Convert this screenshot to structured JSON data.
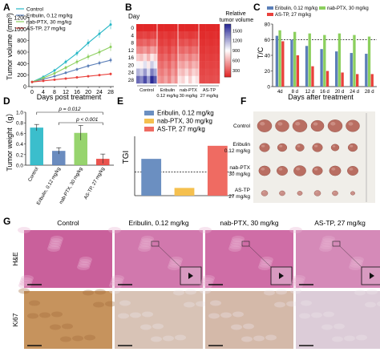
{
  "panels": {
    "A": {
      "letter": "A"
    },
    "B": {
      "letter": "B"
    },
    "C": {
      "letter": "C"
    },
    "D": {
      "letter": "D"
    },
    "E": {
      "letter": "E"
    },
    "F": {
      "letter": "F"
    },
    "G": {
      "letter": "G"
    }
  },
  "colors": {
    "control": "#26b7c6",
    "eribulin": "#5b7fb8",
    "nab": "#8ccf5e",
    "astp": "#e9413c",
    "tgi_eribulin": "#6b8fc1",
    "tgi_nab": "#f5c04f",
    "tgi_astp": "#ef6b62"
  },
  "chart_data": [
    {
      "id": "A",
      "type": "line",
      "xlabel": "Days post treatment",
      "ylabel": "Tumor volume (mm³)",
      "x": [
        0,
        4,
        8,
        12,
        16,
        20,
        24,
        28
      ],
      "xticks": [
        "0",
        "4",
        "8",
        "12",
        "16",
        "20",
        "24",
        "28"
      ],
      "yticks": [
        "0",
        "200",
        "400",
        "600",
        "800",
        "1000",
        "1200"
      ],
      "ylim": [
        0,
        1200
      ],
      "series": [
        {
          "name": "Control",
          "values": [
            80,
            170,
            280,
            430,
            580,
            760,
            920,
            1080
          ],
          "err": [
            10,
            20,
            30,
            40,
            50,
            60,
            70,
            80
          ]
        },
        {
          "name": "Eribulin, 0.12 mg/kg",
          "values": [
            80,
            130,
            180,
            240,
            300,
            360,
            410,
            460
          ],
          "err": [
            8,
            15,
            20,
            25,
            30,
            35,
            40,
            45
          ]
        },
        {
          "name": "nab-PTX, 30 mg/kg",
          "values": [
            80,
            150,
            230,
            330,
            430,
            520,
            600,
            690
          ],
          "err": [
            8,
            15,
            25,
            35,
            45,
            50,
            60,
            70
          ]
        },
        {
          "name": "AS-TP, 27 mg/kg",
          "values": [
            80,
            100,
            120,
            140,
            160,
            180,
            200,
            220
          ],
          "err": [
            6,
            10,
            12,
            15,
            18,
            20,
            22,
            25
          ]
        }
      ]
    },
    {
      "id": "B",
      "type": "heatmap",
      "title": "Day",
      "colorbar_title": "Relative tumor volume",
      "colorbar_ticks": [
        "300",
        "600",
        "900",
        "1200",
        "1500"
      ],
      "rows": [
        "0",
        "4",
        "8",
        "12",
        "16",
        "20",
        "24",
        "28"
      ],
      "groups": [
        "Control",
        "Eribulin\n0.12 mg/kg",
        "nab-PTX\n30 mg/kg",
        "AS-TP\n27 mg/kg"
      ],
      "cols_per_group": 6,
      "values": [
        [
          100,
          100,
          100,
          100,
          100,
          100,
          100,
          100,
          100,
          100,
          100,
          100,
          100,
          100,
          100,
          100,
          100,
          100,
          100,
          100,
          100,
          100,
          100,
          100
        ],
        [
          200,
          190,
          210,
          180,
          220,
          205,
          160,
          150,
          170,
          140,
          160,
          155,
          180,
          170,
          190,
          160,
          175,
          185,
          120,
          110,
          130,
          115,
          125,
          120
        ],
        [
          320,
          300,
          340,
          290,
          360,
          330,
          200,
          180,
          210,
          170,
          220,
          190,
          260,
          240,
          280,
          230,
          270,
          250,
          140,
          130,
          150,
          135,
          145,
          140
        ],
        [
          480,
          450,
          520,
          430,
          560,
          500,
          260,
          230,
          280,
          210,
          300,
          250,
          360,
          330,
          390,
          320,
          380,
          350,
          160,
          150,
          170,
          155,
          165,
          160
        ],
        [
          700,
          650,
          760,
          620,
          820,
          730,
          320,
          290,
          350,
          270,
          380,
          310,
          470,
          430,
          510,
          420,
          500,
          460,
          180,
          170,
          190,
          175,
          185,
          180
        ],
        [
          930,
          860,
          1010,
          820,
          1090,
          970,
          390,
          350,
          420,
          330,
          460,
          370,
          580,
          540,
          630,
          520,
          620,
          570,
          200,
          190,
          210,
          195,
          205,
          200
        ],
        [
          1180,
          1090,
          1280,
          1040,
          1380,
          1230,
          450,
          410,
          490,
          390,
          530,
          430,
          690,
          640,
          750,
          620,
          740,
          680,
          220,
          210,
          230,
          215,
          225,
          220
        ],
        [
          1450,
          1340,
          1570,
          1280,
          1690,
          1510,
          520,
          470,
          560,
          450,
          610,
          500,
          800,
          740,
          870,
          720,
          860,
          790,
          240,
          230,
          250,
          235,
          245,
          240
        ]
      ]
    },
    {
      "id": "C",
      "type": "bar",
      "ylabel": "T/C",
      "xlabel": "Days after treatment",
      "categories": [
        "4d",
        "8 d",
        "12 d",
        "16 d",
        "20 d",
        "24 d",
        "28 d"
      ],
      "yticks": [
        "0",
        "20",
        "40",
        "60",
        "80"
      ],
      "ylim": [
        0,
        80
      ],
      "threshold": 60,
      "series": [
        {
          "name": "Eribulin, 0.12 mg/kg",
          "values": [
            65,
            60,
            52,
            48,
            45,
            43,
            42
          ]
        },
        {
          "name": "nab-PTX, 30 mg/kg",
          "values": [
            72,
            70,
            68,
            66,
            68,
            66,
            64
          ]
        },
        {
          "name": "AS-TP, 27 mg/kg",
          "values": [
            58,
            40,
            26,
            20,
            18,
            16,
            16
          ]
        }
      ]
    },
    {
      "id": "D",
      "type": "bar",
      "ylabel": "Tumor weight（g）",
      "categories": [
        "Control",
        "Eribulin, 0.12 mg/kg",
        "nab-PTX, 30 mg/kg",
        "AS-TP, 27 mg/kg"
      ],
      "values": [
        0.71,
        0.27,
        0.61,
        0.12
      ],
      "err": [
        0.06,
        0.06,
        0.14,
        0.09
      ],
      "yticks": [
        "0.0",
        "0.2",
        "0.4",
        "0.6",
        "0.8",
        "1.0"
      ],
      "ylim": [
        0,
        1.0
      ],
      "annotations": [
        "p = 0.012",
        "p < 0.001"
      ]
    },
    {
      "id": "E",
      "type": "bar",
      "ylabel": "TGI",
      "categories": [
        "Eribulin, 0.12 mg/kg",
        "nab-PTX, 30 mg/kg",
        "AS-TP, 27 mg/kg"
      ],
      "values": [
        62,
        13,
        84
      ],
      "legend": [
        "Eribulin, 0.12 mg/kg",
        "nab-PTX, 30 mg/kg",
        "AS-TP, 27 mg/kg"
      ],
      "ylim": [
        0,
        100
      ],
      "threshold": 40
    }
  ],
  "photo_F": {
    "row_labels": [
      "Control",
      "Eribulin\n0.12 mg/kg",
      "nab-PTX\n30 mg/kg",
      "AS-TP\n27 mg/kg"
    ],
    "tumor_sizes": [
      [
        1.0,
        0.95,
        1.0,
        0.9,
        1.0,
        0.95
      ],
      [
        0.7,
        0.65,
        0.6,
        0.7,
        0.55,
        0.65
      ],
      [
        0.8,
        0.75,
        0.85,
        0.7,
        0.8,
        0.75
      ],
      [
        0.45,
        0.4,
        0.35,
        0.45,
        0.4,
        0.3
      ]
    ]
  },
  "panel_G": {
    "columns": [
      "Control",
      "Eribulin, 0.12 mg/kg",
      "nab-PTX, 30 mg/kg",
      "AS-TP, 27 mg/kg"
    ],
    "rows": [
      "H&E",
      "Ki67"
    ]
  }
}
